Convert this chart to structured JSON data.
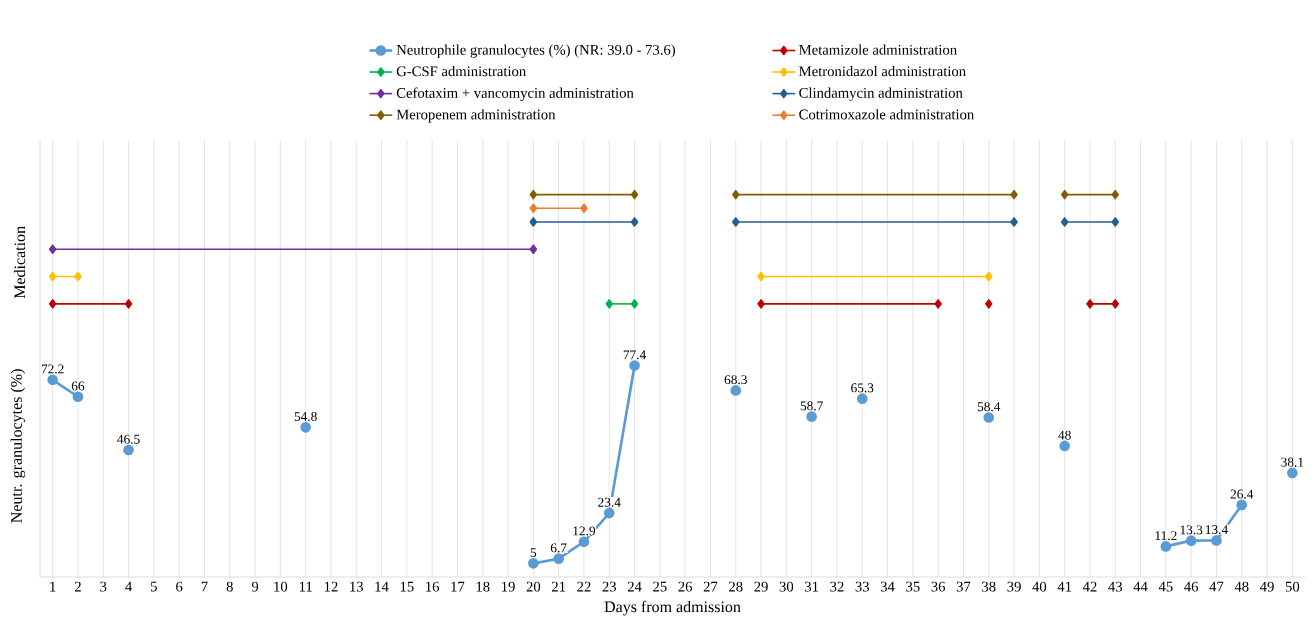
{
  "chart_data": {
    "type": "line",
    "xlabel": "Days from admission",
    "ylabel": "Neutr. granulocytes (%)",
    "annotations": [
      "Medication"
    ],
    "xlim": [
      0.5,
      50.5
    ],
    "xticks": [
      1,
      2,
      3,
      4,
      5,
      6,
      7,
      8,
      9,
      10,
      11,
      12,
      13,
      14,
      15,
      16,
      17,
      18,
      19,
      20,
      21,
      22,
      23,
      24,
      25,
      26,
      27,
      28,
      29,
      30,
      31,
      32,
      33,
      34,
      35,
      36,
      37,
      38,
      39,
      40,
      41,
      42,
      43,
      44,
      45,
      46,
      47,
      48,
      49,
      50
    ],
    "ylim": [
      0,
      160
    ],
    "tick_labels": "x",
    "grid": "x",
    "legend": "top",
    "series": [
      {
        "name": "Neutrophile granulocytes (%) (NR: 39.0 - 73.6)",
        "color": "#5b9bd5",
        "marker": "circle",
        "x": [
          1,
          2,
          3,
          4,
          5,
          11,
          12,
          20,
          21,
          22,
          23,
          24,
          25,
          28,
          29,
          31,
          32,
          33,
          34,
          38,
          39,
          41,
          42,
          45,
          46,
          47,
          48,
          49,
          50
        ],
        "values": [
          72.2,
          66,
          null,
          46.5,
          null,
          54.8,
          null,
          5,
          6.7,
          12.9,
          23.4,
          77.4,
          null,
          68.3,
          null,
          58.7,
          null,
          65.3,
          null,
          58.4,
          null,
          48,
          null,
          11.2,
          13.3,
          13.4,
          26.4,
          null,
          38.1
        ],
        "value_labels": [
          "72.2",
          "66",
          null,
          "46.5",
          null,
          "54.8",
          null,
          "5",
          "6.7",
          "12.9",
          "23.4",
          "77.4",
          null,
          "68.3",
          null,
          "58.7",
          null,
          "65.3",
          null,
          "58.4",
          null,
          "48",
          null,
          "11.2",
          "13.3",
          "13.4",
          "26.4",
          null,
          "38.1"
        ]
      },
      {
        "name": "Metamizole administration",
        "color": "#c00000",
        "marker": "diamond",
        "x": [
          1,
          4,
          5,
          29,
          36,
          37,
          38,
          39,
          42,
          43
        ],
        "values": [
          100,
          100,
          null,
          100,
          100,
          null,
          100,
          null,
          100,
          100
        ]
      },
      {
        "name": "G-CSF administration",
        "color": "#00b050",
        "marker": "diamond",
        "x": [
          23,
          24
        ],
        "values": [
          100,
          100
        ]
      },
      {
        "name": "Metronidazol administration",
        "color": "#ffc000",
        "marker": "diamond",
        "x": [
          1,
          2,
          3,
          29,
          38
        ],
        "values": [
          110,
          110,
          null,
          110,
          110
        ]
      },
      {
        "name": "Cefotaxim + vancomycin administration",
        "color": "#7030a0",
        "marker": "diamond",
        "x": [
          1,
          20
        ],
        "values": [
          120,
          120
        ]
      },
      {
        "name": "Clindamycin administration",
        "color": "#255e91",
        "marker": "diamond",
        "x": [
          20,
          24,
          25,
          28,
          39,
          40,
          41,
          43
        ],
        "values": [
          130,
          130,
          null,
          130,
          130,
          null,
          130,
          130
        ]
      },
      {
        "name": "Meropenem administration",
        "color": "#7f6000",
        "marker": "diamond",
        "x": [
          20,
          24,
          25,
          28,
          39,
          40,
          41,
          43
        ],
        "values": [
          140,
          140,
          null,
          140,
          140,
          null,
          140,
          140
        ]
      },
      {
        "name": "Cotrimoxazole administration",
        "color": "#ed7d31",
        "marker": "diamond",
        "x": [
          20,
          22
        ],
        "values": [
          135,
          135
        ]
      }
    ]
  }
}
